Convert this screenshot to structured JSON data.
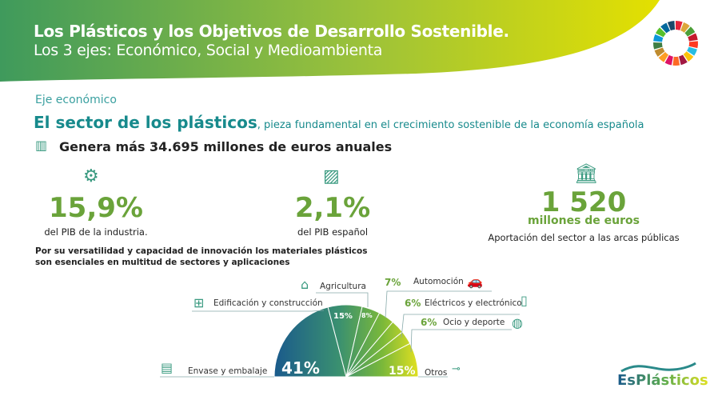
{
  "header": {
    "title": "Los Plásticos y los Objetivos de Desarrollo Sostenible.",
    "subtitle": "Los 3 ejes: Económico, Social y Medioambienta",
    "colors": {
      "start": "#3f9a5c",
      "end": "#e4e000"
    }
  },
  "section": {
    "label": "Eje económico",
    "headline": "El sector de los plásticos",
    "headline_rest": ", pieza fundamental en el crecimiento sostenible de la economía española",
    "genera": "Genera más 34.695 millones de euros anuales"
  },
  "stats": [
    {
      "value": "15,9%",
      "caption": "del PIB de la industria."
    },
    {
      "value": "2,1%",
      "caption": "del PIB español"
    },
    {
      "value": "1 520",
      "unit": "millones de euros",
      "caption": "Aportación del sector a las arcas públicas"
    }
  ],
  "paragraph": "Por su versatilidad y capacidad de innovación los materiales plásticos son esenciales en multitud de sectores y aplicaciones",
  "chart_data": {
    "type": "pie",
    "shape": "semicircle",
    "categories": [
      "Envase y embalaje",
      "Edificación y construcción",
      "Agricultura",
      "Automoción",
      "Eléctricos y electrónico",
      "Ocio y deporte",
      "Otros"
    ],
    "values": [
      41,
      15,
      8,
      7,
      6,
      6,
      15
    ],
    "labels": [
      "41%",
      "15%",
      "8%",
      "7%",
      "6%",
      "6%",
      "15%"
    ]
  },
  "logo": {
    "text": "EsPlásticos"
  }
}
